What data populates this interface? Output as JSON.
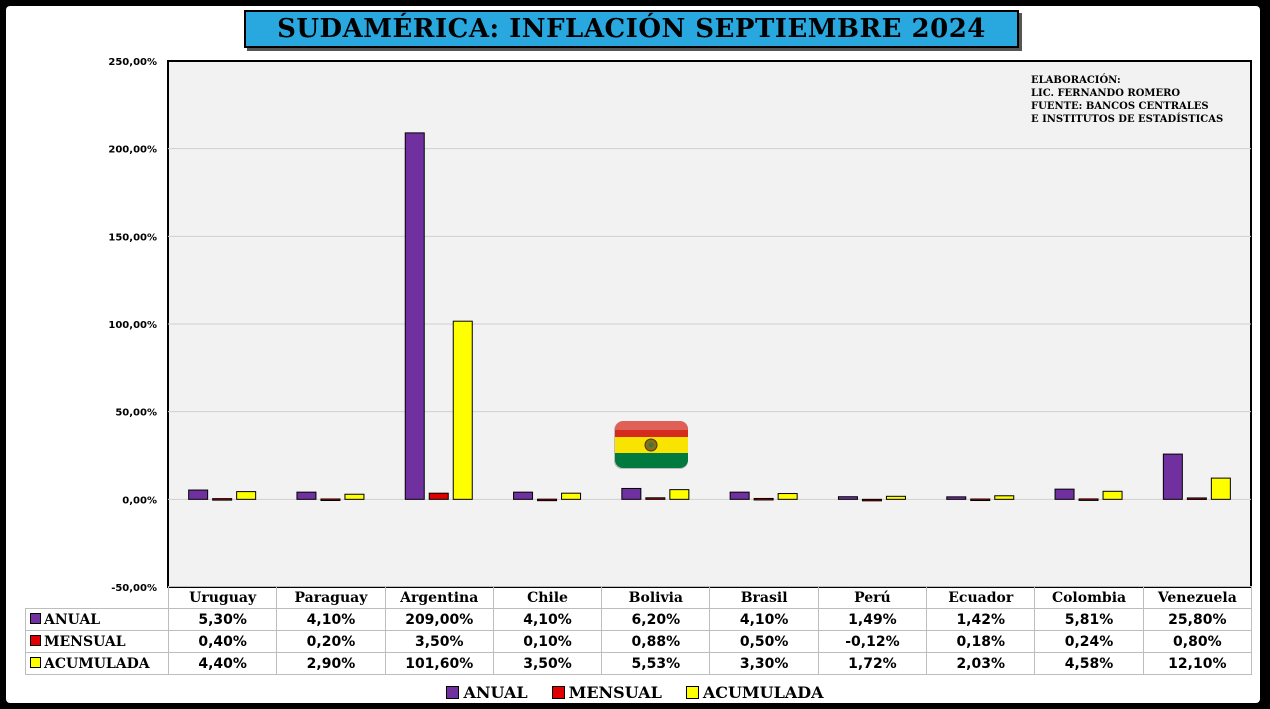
{
  "title": "SUDAMÉRICA: INFLACIÓN SEPTIEMBRE 2024",
  "credits": [
    "ELABORACIÓN:",
    "LIC. FERNANDO ROMERO",
    "FUENTE: BANCOS CENTRALES",
    "E INSTITUTOS DE ESTADÍSTICAS"
  ],
  "colors": {
    "anual": "#7030a0",
    "mensual": "#e00000",
    "acumulada": "#ffff00",
    "plot_bg": "#f2f2f2",
    "title_bg": "#29a8e0"
  },
  "flag_icon": "bolivia-flag-icon",
  "chart_data": {
    "type": "bar",
    "categories": [
      "Uruguay",
      "Paraguay",
      "Argentina",
      "Chile",
      "Bolivia",
      "Brasil",
      "Perú",
      "Ecuador",
      "Colombia",
      "Venezuela"
    ],
    "series": [
      {
        "name": "ANUAL",
        "values": [
          5.3,
          4.1,
          209.0,
          4.1,
          6.2,
          4.1,
          1.49,
          1.42,
          5.81,
          25.8
        ],
        "labels": [
          "5,30%",
          "4,10%",
          "209,00%",
          "4,10%",
          "6,20%",
          "4,10%",
          "1,49%",
          "1,42%",
          "5,81%",
          "25,80%"
        ]
      },
      {
        "name": "MENSUAL",
        "values": [
          0.4,
          0.2,
          3.5,
          0.1,
          0.88,
          0.5,
          -0.12,
          0.18,
          0.24,
          0.8
        ],
        "labels": [
          "0,40%",
          "0,20%",
          "3,50%",
          "0,10%",
          "0,88%",
          "0,50%",
          "-0,12%",
          "0,18%",
          "0,24%",
          "0,80%"
        ]
      },
      {
        "name": "ACUMULADA",
        "values": [
          4.4,
          2.9,
          101.6,
          3.5,
          5.53,
          3.3,
          1.72,
          2.03,
          4.58,
          12.1
        ],
        "labels": [
          "4,40%",
          "2,90%",
          "101,60%",
          "3,50%",
          "5,53%",
          "3,30%",
          "1,72%",
          "2,03%",
          "4,58%",
          "12,10%"
        ]
      }
    ],
    "ylim": [
      -50,
      250
    ],
    "yticks": [
      250,
      200,
      150,
      100,
      50,
      0,
      -50
    ],
    "ytick_labels": [
      "250,00%",
      "200,00%",
      "150,00%",
      "100,00%",
      "50,00%",
      "0,00%",
      "-50,00%"
    ],
    "grid": true,
    "legend_position": "bottom",
    "xlabel": "",
    "ylabel": ""
  }
}
